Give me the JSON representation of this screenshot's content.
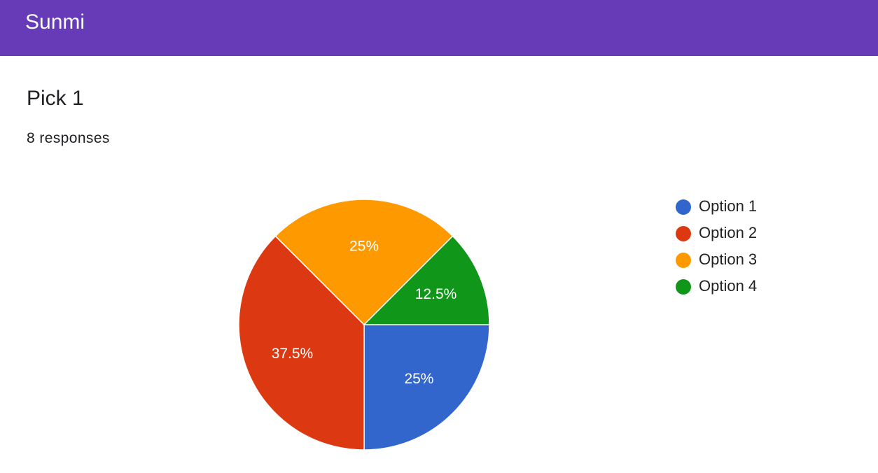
{
  "header": {
    "title": "Sunmi"
  },
  "question": {
    "title": "Pick 1",
    "responses": "8 responses"
  },
  "chart_data": {
    "type": "pie",
    "categories": [
      "Option 1",
      "Option 2",
      "Option 3",
      "Option 4"
    ],
    "values": [
      25,
      37.5,
      25,
      12.5
    ],
    "value_labels": [
      "25%",
      "37.5%",
      "25%",
      "12.5%"
    ],
    "colors": [
      "#3366cc",
      "#dc3912",
      "#ff9900",
      "#109618"
    ],
    "legend": "right"
  }
}
